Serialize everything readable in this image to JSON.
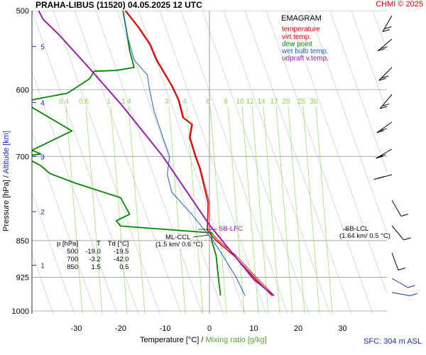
{
  "title": "PRAHA-LIBUS (11520)    04.05.2025 12 UTC",
  "credit": "CHMI © 2025",
  "surface_info": "SFC: 304 m ASL",
  "legend": {
    "title": "EMAGRAM",
    "entries": [
      {
        "label": "temperature",
        "color": "#e00000"
      },
      {
        "label": "virt.temp.",
        "color": "#e00000"
      },
      {
        "label": "dew point",
        "color": "#008a00"
      },
      {
        "label": "wet bulb temp.",
        "color": "#1a5fd8"
      },
      {
        "label": "udpraft v.temp.",
        "color": "#9c1ab1"
      }
    ]
  },
  "axes": {
    "xlabel_main": "Temperature [°C]",
    "xlabel_sep": "/",
    "xlabel_secondary": "Mixing ratio [g/kg]",
    "ylabel_main": "Pressure [hPa]",
    "ylabel_sep": "/",
    "ylabel_secondary": "Altitude [km]"
  },
  "table": {
    "header": [
      "p [hPa]",
      "T",
      "Td [°C]"
    ],
    "rows": [
      [
        "500",
        "-19.0",
        "-19.5"
      ],
      [
        "700",
        "-3.2",
        "-42.0"
      ],
      [
        "850",
        "1.5",
        "0.5"
      ]
    ]
  },
  "annotations": {
    "sb_lfc": "SB-LFC",
    "ml_ccl": "ML-CCL",
    "ml_ccl_detail": "(1.5 km/ 0.6 °C)",
    "sb_lcl": "SB-LCL",
    "sb_lcl_detail": "(1.64 km/ 0.5 °C)"
  },
  "chart_data": {
    "type": "line",
    "title": "PRAHA-LIBUS (11520)    04.05.2025 12 UTC",
    "xlabel": "Temperature [°C] / Mixing ratio [g/kg]",
    "ylabel": "Pressure [hPa] / Altitude [km]",
    "xlim": [
      -41,
      40
    ],
    "ylim": [
      1000,
      500
    ],
    "y_scale": "log",
    "grid": true,
    "legend_position": "top-right",
    "x_ticks": [
      -30,
      -20,
      -10,
      0,
      10,
      20,
      30
    ],
    "pressure_ticks": [
      500,
      600,
      700,
      850,
      925,
      1000
    ],
    "altitude_ticks": [
      {
        "label": "1",
        "p": 900
      },
      {
        "label": "2",
        "p": 795
      },
      {
        "label": "3",
        "p": 700
      },
      {
        "label": "4",
        "p": 618
      },
      {
        "label": "5",
        "p": 543
      }
    ],
    "mixing_ratio_labels": [
      "0.4",
      "0.6",
      "1",
      "1.4",
      "3",
      "4",
      "6",
      "8",
      "10",
      "12",
      "14",
      "17",
      "20",
      "25",
      "30"
    ],
    "series": [
      {
        "name": "temperature",
        "color": "#e00000",
        "points": [
          [
            14.1,
            965
          ],
          [
            10,
            925
          ],
          [
            5.5,
            880
          ],
          [
            1.5,
            850
          ],
          [
            -0.5,
            830
          ],
          [
            -0.3,
            780
          ],
          [
            -2.2,
            720
          ],
          [
            -3.2,
            700
          ],
          [
            -4.5,
            670
          ],
          [
            -4,
            650
          ],
          [
            -6,
            640
          ],
          [
            -7,
            615
          ],
          [
            -8.5,
            595
          ],
          [
            -12,
            560
          ],
          [
            -13.5,
            540
          ],
          [
            -16,
            520
          ],
          [
            -19,
            500
          ]
        ]
      },
      {
        "name": "virt.temp.",
        "color": "#e00000",
        "points": [
          [
            14.6,
            965
          ],
          [
            10.5,
            925
          ],
          [
            6,
            880
          ],
          [
            2,
            850
          ],
          [
            0,
            830
          ],
          [
            0,
            780
          ],
          [
            -2,
            720
          ],
          [
            -3,
            700
          ],
          [
            -4.3,
            670
          ],
          [
            -3.8,
            650
          ],
          [
            -5.8,
            640
          ],
          [
            -6.8,
            615
          ],
          [
            -8.3,
            595
          ],
          [
            -11.8,
            560
          ],
          [
            -13.3,
            540
          ],
          [
            -15.8,
            520
          ],
          [
            -18.8,
            500
          ]
        ]
      },
      {
        "name": "dew point",
        "color": "#008a00",
        "points": [
          [
            2.5,
            965
          ],
          [
            2,
            925
          ],
          [
            1.5,
            880
          ],
          [
            0.5,
            850
          ],
          [
            0.5,
            835
          ],
          [
            -20,
            822
          ],
          [
            -21,
            812
          ],
          [
            -18,
            800
          ],
          [
            -20,
            770
          ],
          [
            -30,
            745
          ],
          [
            -36,
            728
          ],
          [
            -38,
            715
          ],
          [
            -42,
            700
          ],
          [
            -38,
            696
          ],
          [
            -40,
            690
          ],
          [
            -31,
            660
          ],
          [
            -40,
            625
          ],
          [
            -42,
            617
          ],
          [
            -38,
            612
          ],
          [
            -32,
            605
          ],
          [
            -27,
            585
          ],
          [
            -26,
            575
          ],
          [
            -21,
            574
          ],
          [
            -17,
            570
          ],
          [
            -18,
            548
          ],
          [
            -18.5,
            530
          ],
          [
            -19.5,
            500
          ]
        ]
      },
      {
        "name": "wet bulb temp.",
        "color": "#1a5fd8",
        "points": [
          [
            8,
            965
          ],
          [
            6,
            925
          ],
          [
            3,
            880
          ],
          [
            0.8,
            850
          ],
          [
            -4,
            800
          ],
          [
            -8.5,
            760
          ],
          [
            -9.5,
            730
          ],
          [
            -9,
            700
          ],
          [
            -10.5,
            670
          ],
          [
            -12.5,
            630
          ],
          [
            -13.5,
            600
          ],
          [
            -14,
            580
          ],
          [
            -17,
            560
          ],
          [
            -18.5,
            530
          ],
          [
            -19.5,
            500
          ]
        ]
      },
      {
        "name": "udpraft v.temp.",
        "color": "#9c1ab1",
        "points": [
          [
            14.5,
            965
          ],
          [
            10,
            930
          ],
          [
            0,
            820
          ],
          [
            -10.5,
            700
          ],
          [
            -20,
            620
          ],
          [
            -28,
            565
          ],
          [
            -34,
            528
          ],
          [
            -37.5,
            510
          ],
          [
            -38.5,
            500
          ]
        ]
      }
    ]
  }
}
